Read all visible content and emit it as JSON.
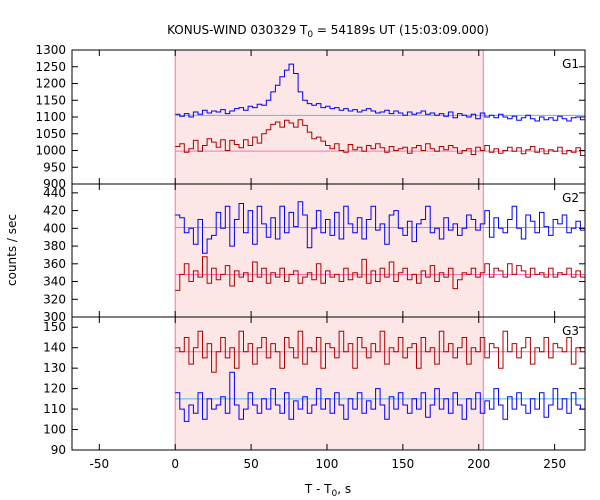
{
  "chart_data": {
    "type": "line",
    "title_main": "KONUS-WIND 030329 T",
    "title_sub": "0",
    "title_rest": " = 54189s UT (15:03:09.000)",
    "xlabel_main": "T - T",
    "xlabel_sub": "0",
    "xlabel_rest": ", s",
    "ylabel": "counts / sec",
    "xlim": [
      -68,
      270
    ],
    "x_ticks": [
      -50,
      0,
      50,
      100,
      150,
      200,
      250
    ],
    "highlight_interval": [
      0,
      203
    ],
    "colors": {
      "blue": "#0000ff",
      "red": "#b00000",
      "light_blue": "#40c0ff",
      "pink": "#ff70b0",
      "band": "#fde6e6"
    },
    "panels": [
      {
        "label": "G1",
        "ylim": [
          900,
          1300
        ],
        "y_ticks": [
          900,
          950,
          1000,
          1050,
          1100,
          1150,
          1200,
          1250,
          1300
        ],
        "series": [
          {
            "color": "blue",
            "x_start": 0,
            "x_end": 270,
            "bg_level": 1105,
            "values": [
              1108,
              1102,
              1110,
              1100,
              1115,
              1108,
              1120,
              1112,
              1118,
              1115,
              1122,
              1110,
              1118,
              1125,
              1128,
              1120,
              1132,
              1128,
              1138,
              1135,
              1150,
              1175,
              1195,
              1220,
              1240,
              1258,
              1230,
              1175,
              1150,
              1140,
              1135,
              1140,
              1128,
              1132,
              1125,
              1128,
              1120,
              1125,
              1118,
              1122,
              1115,
              1120,
              1125,
              1118,
              1112,
              1115,
              1120,
              1110,
              1118,
              1112,
              1105,
              1115,
              1108,
              1112,
              1118,
              1108,
              1112,
              1105,
              1110,
              1102,
              1115,
              1098,
              1110,
              1105,
              1100,
              1108,
              1095,
              1112,
              1100,
              1105,
              1098,
              1108,
              1100,
              1095,
              1102,
              1090,
              1098,
              1105,
              1095,
              1088,
              1100,
              1092,
              1098,
              1090,
              1102,
              1095,
              1088,
              1098,
              1100,
              1092
            ]
          },
          {
            "color": "red",
            "x_start": 0,
            "x_end": 270,
            "bg_level": 998,
            "values": [
              1012,
              1020,
              995,
              1005,
              1030,
              998,
              1015,
              1035,
              1025,
              1010,
              1032,
              1000,
              1030,
              1018,
              1008,
              1032,
              1015,
              1040,
              1022,
              1050,
              1062,
              1078,
              1085,
              1070,
              1090,
              1082,
              1070,
              1092,
              1075,
              1055,
              1035,
              1040,
              1028,
              1015,
              1005,
              1020,
              1000,
              995,
              1018,
              1002,
              1010,
              998,
              1015,
              1005,
              1020,
              1008,
              995,
              1012,
              1000,
              1005,
              1010,
              992,
              1008,
              1015,
              1000,
              1020,
              1005,
              998,
              1012,
              1002,
              1015,
              1008,
              992,
              1000,
              1005,
              988,
              1010,
              1000,
              1015,
              995,
              1005,
              992,
              1000,
              1010,
              998,
              1008,
              990,
              1002,
              1012,
              995,
              1005,
              990,
              1002,
              998,
              1010,
              990,
              1000,
              995,
              1008,
              985
            ]
          }
        ]
      },
      {
        "label": "G2",
        "ylim": [
          300,
          450
        ],
        "y_ticks": [
          300,
          320,
          340,
          360,
          380,
          400,
          420,
          440
        ],
        "series": [
          {
            "color": "blue",
            "x_start": 0,
            "x_end": 270,
            "bg_level": 401,
            "values": [
              415,
              412,
              395,
              400,
              382,
              410,
              372,
              388,
              392,
              418,
              400,
              425,
              380,
              410,
              428,
              395,
              420,
              382,
              425,
              405,
              390,
              412,
              388,
              425,
              395,
              418,
              402,
              430,
              415,
              378,
              400,
              420,
              395,
              410,
              392,
              418,
              388,
              425,
              405,
              395,
              412,
              388,
              410,
              425,
              398,
              405,
              382,
              415,
              420,
              400,
              392,
              408,
              385,
              405,
              410,
              425,
              395,
              400,
              388,
              412,
              398,
              405,
              392,
              400,
              415,
              410,
              398,
              405,
              420,
              390,
              412,
              400,
              395,
              410,
              425,
              400,
              388,
              415,
              408,
              395,
              418,
              402,
              392,
              410,
              405,
              415,
              395,
              400,
              408,
              398
            ]
          },
          {
            "color": "red",
            "x_start": 0,
            "x_end": 270,
            "bg_level": 348,
            "values": [
              330,
              348,
              360,
              340,
              352,
              345,
              368,
              338,
              355,
              342,
              348,
              358,
              335,
              352,
              345,
              350,
              340,
              362,
              345,
              355,
              338,
              350,
              345,
              355,
              340,
              348,
              352,
              338,
              345,
              350,
              342,
              360,
              338,
              352,
              345,
              348,
              340,
              355,
              342,
              350,
              345,
              365,
              338,
              352,
              340,
              355,
              345,
              362,
              340,
              350,
              355,
              342,
              348,
              338,
              352,
              345,
              358,
              340,
              350,
              345,
              355,
              332,
              342,
              350,
              348,
              355,
              345,
              350,
              360,
              345,
              355,
              352,
              345,
              360,
              348,
              358,
              352,
              345,
              355,
              348,
              350,
              345,
              355,
              345,
              350,
              348,
              355,
              345,
              352,
              345
            ]
          }
        ]
      },
      {
        "label": "G3",
        "ylim": [
          90,
          155
        ],
        "y_ticks": [
          90,
          100,
          110,
          120,
          130,
          140,
          150
        ],
        "series": [
          {
            "color": "red",
            "x_start": 0,
            "x_end": 270,
            "bg_level": 138,
            "values": [
              140,
              138,
              145,
              132,
              140,
              148,
              135,
              142,
              128,
              138,
              145,
              135,
              140,
              130,
              148,
              138,
              142,
              132,
              140,
              145,
              135,
              142,
              138,
              130,
              145,
              140,
              135,
              148,
              132,
              140,
              138,
              145,
              130,
              142,
              140,
              135,
              148,
              138,
              142,
              130,
              145,
              140,
              135,
              142,
              138,
              148,
              132,
              140,
              138,
              145,
              135,
              140,
              142,
              130,
              145,
              138,
              140,
              132,
              148,
              138,
              142,
              135,
              140,
              145,
              132,
              140,
              138,
              145,
              135,
              142,
              140,
              130,
              148,
              138,
              142,
              135,
              140,
              145,
              132,
              140,
              138,
              145,
              135,
              142,
              140,
              138,
              145,
              132,
              140,
              138
            ]
          },
          {
            "color": "blue",
            "x_start": 0,
            "x_end": 270,
            "bg_level": 115,
            "values": [
              118,
              110,
              104,
              112,
              108,
              118,
              105,
              115,
              110,
              112,
              116,
              108,
              128,
              112,
              105,
              110,
              118,
              112,
              108,
              115,
              110,
              120,
              112,
              108,
              118,
              105,
              114,
              110,
              116,
              108,
              112,
              120,
              110,
              115,
              108,
              118,
              112,
              105,
              115,
              110,
              118,
              108,
              114,
              110,
              120,
              112,
              105,
              116,
              110,
              118,
              112,
              108,
              115,
              110,
              118,
              106,
              112,
              120,
              110,
              115,
              108,
              118,
              112,
              105,
              115,
              110,
              118,
              108,
              114,
              110,
              120,
              112,
              105,
              116,
              110,
              118,
              112,
              108,
              115,
              110,
              118,
              106,
              112,
              120,
              110,
              115,
              108,
              118,
              112,
              110
            ]
          }
        ]
      }
    ]
  }
}
